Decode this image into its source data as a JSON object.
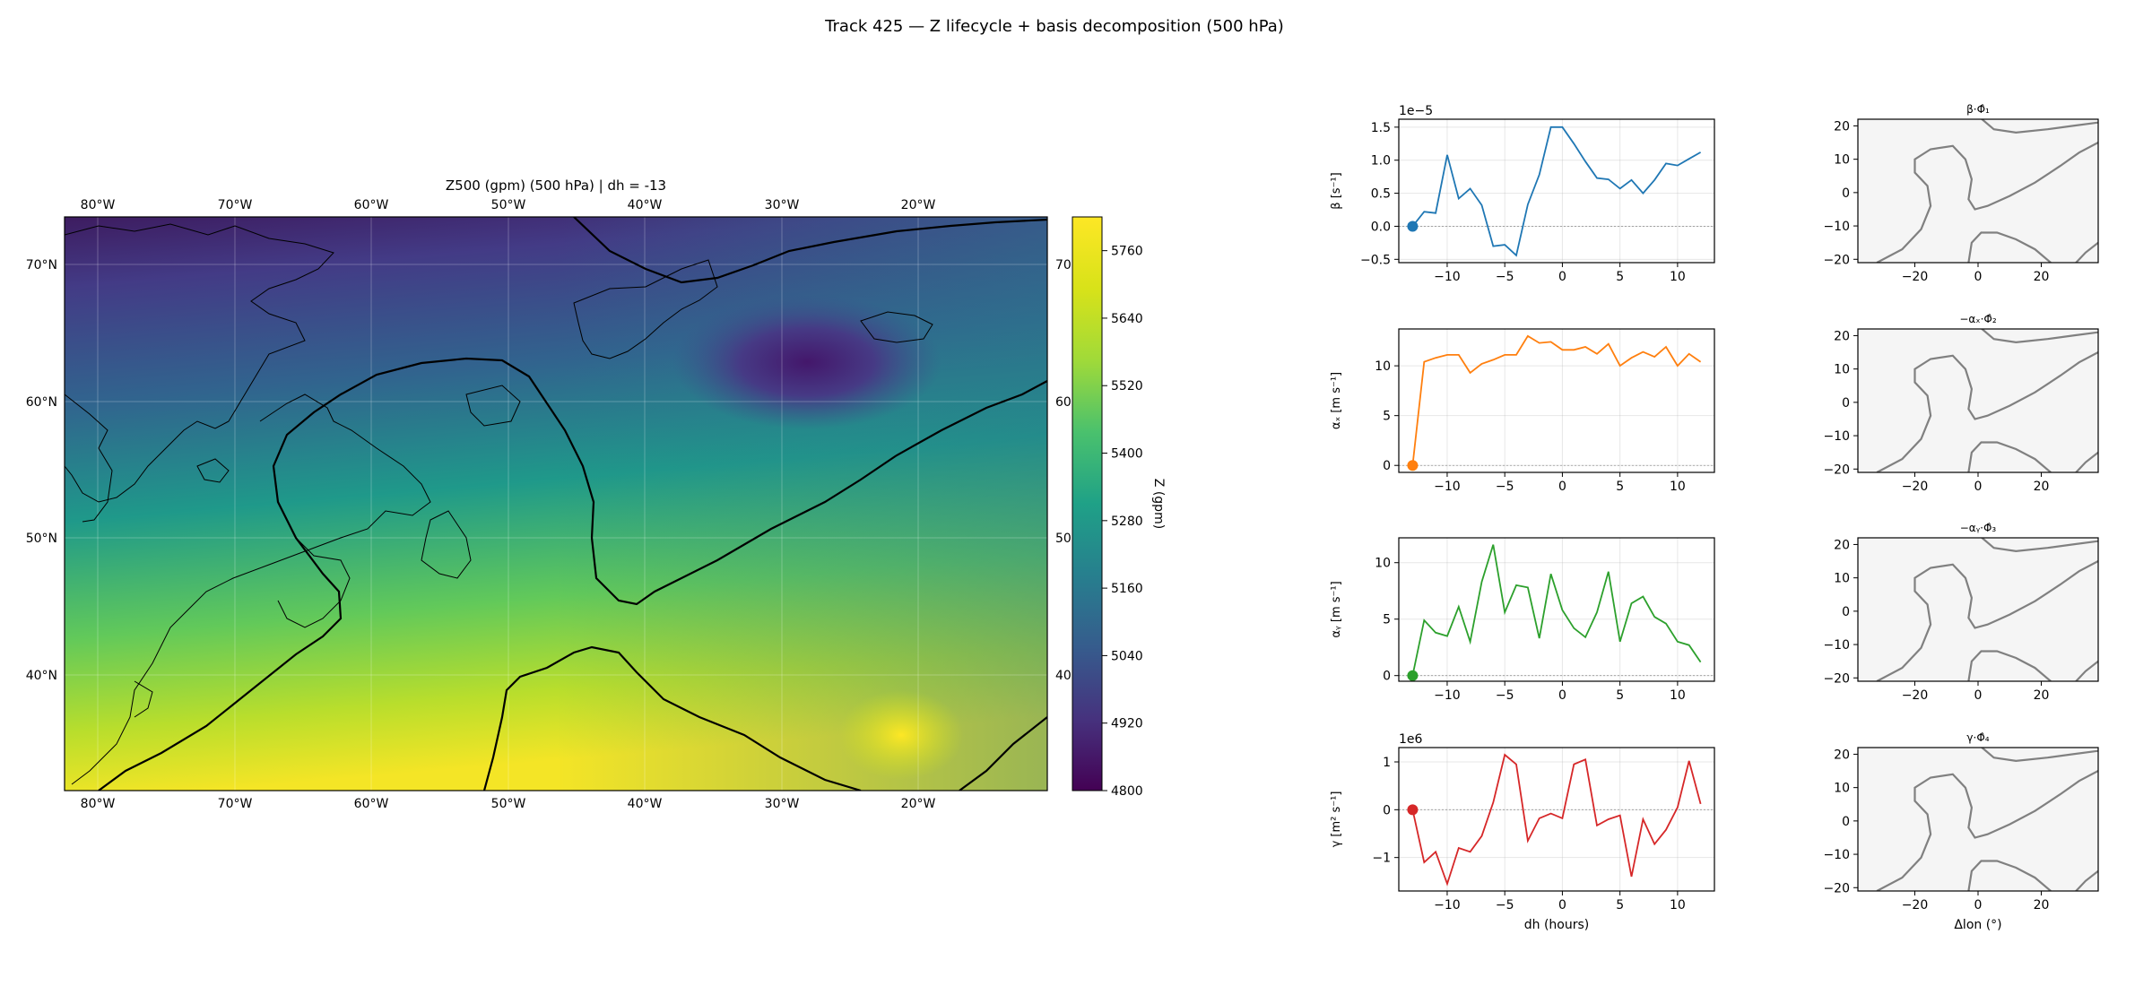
{
  "suptitle": "Track 425 — Z lifecycle + basis decomposition (500 hPa)",
  "map": {
    "title": "Z500 (gpm) (500 hPa)  |  dh = -13",
    "lon_labels": [
      "80°W",
      "70°W",
      "60°W",
      "50°W",
      "40°W",
      "30°W",
      "20°W"
    ],
    "lat_labels": [
      "70°N",
      "60°N",
      "50°N",
      "40°N"
    ],
    "lat_labels_right_clipped": [
      "70",
      "60",
      "50",
      "40"
    ],
    "colorbar": {
      "label": "Z (gpm)",
      "ticks": [
        "5760",
        "5640",
        "5520",
        "5400",
        "5280",
        "5160",
        "5040",
        "4920",
        "4800"
      ],
      "range": [
        4800,
        5820
      ],
      "colormap": "viridis"
    }
  },
  "chart_data": [
    {
      "type": "line",
      "panel": "beta",
      "ylabel_tex": "β [s⁻¹]",
      "offset_label": "1e−5",
      "xlim": [
        -14.2,
        13.2
      ],
      "ylim": [
        -0.55,
        1.62
      ],
      "xticks": [
        "−10",
        "−5",
        "0",
        "5",
        "10"
      ],
      "yticks": [
        "1.5",
        "1.0",
        "0.5",
        "0.0",
        "−0.5"
      ],
      "color": "#1f77b4",
      "x": [
        -13,
        -12,
        -11,
        -10,
        -9,
        -8,
        -7,
        -6,
        -5,
        -4,
        -3,
        -2,
        -1,
        0,
        1,
        2,
        3,
        4,
        5,
        6,
        7,
        8,
        9,
        10,
        11,
        12
      ],
      "values": [
        0.0,
        0.22,
        0.2,
        1.08,
        0.42,
        0.57,
        0.32,
        -0.3,
        -0.28,
        -0.44,
        0.33,
        0.78,
        1.5,
        1.5,
        1.25,
        0.98,
        0.73,
        0.71,
        0.57,
        0.7,
        0.5,
        0.7,
        0.95,
        0.92,
        1.02,
        1.12
      ],
      "marker": {
        "x": -13,
        "y": 0.0
      }
    },
    {
      "type": "line",
      "panel": "alpha_x",
      "ylabel_tex": "αₓ [m s⁻¹]",
      "xlim": [
        -14.2,
        13.2
      ],
      "ylim": [
        -0.7,
        13.7
      ],
      "xticks": [
        "−10",
        "−5",
        "0",
        "5",
        "10"
      ],
      "yticks": [
        "10",
        "5",
        "0"
      ],
      "color": "#ff7f0e",
      "x": [
        -13,
        -12,
        -11,
        -10,
        -9,
        -8,
        -7,
        -6,
        -5,
        -4,
        -3,
        -2,
        -1,
        0,
        1,
        2,
        3,
        4,
        5,
        6,
        7,
        8,
        9,
        10,
        11,
        12
      ],
      "values": [
        0.0,
        10.4,
        10.8,
        11.1,
        11.1,
        9.3,
        10.2,
        10.6,
        11.1,
        11.1,
        13.0,
        12.3,
        12.4,
        11.6,
        11.6,
        11.9,
        11.2,
        12.2,
        10.0,
        10.8,
        11.4,
        10.9,
        11.9,
        10.0,
        11.2,
        10.4
      ],
      "marker": {
        "x": -13,
        "y": 0.0
      }
    },
    {
      "type": "line",
      "panel": "alpha_y",
      "ylabel_tex": "αᵧ [m s⁻¹]",
      "xlim": [
        -14.2,
        13.2
      ],
      "ylim": [
        -0.5,
        12.2
      ],
      "xticks": [
        "−10",
        "−5",
        "0",
        "5",
        "10"
      ],
      "yticks": [
        "10",
        "5",
        "0"
      ],
      "color": "#2ca02c",
      "x": [
        -13,
        -12,
        -11,
        -10,
        -9,
        -8,
        -7,
        -6,
        -5,
        -4,
        -3,
        -2,
        -1,
        0,
        1,
        2,
        3,
        4,
        5,
        6,
        7,
        8,
        9,
        10,
        11,
        12
      ],
      "values": [
        0.0,
        4.9,
        3.8,
        3.5,
        6.1,
        3.0,
        8.3,
        11.6,
        5.6,
        8.0,
        7.8,
        3.3,
        9.0,
        5.8,
        4.2,
        3.4,
        5.6,
        9.2,
        3.0,
        6.4,
        7.0,
        5.2,
        4.6,
        3.0,
        2.7,
        1.2
      ],
      "marker": {
        "x": -13,
        "y": 0.0
      }
    },
    {
      "type": "line",
      "panel": "gamma",
      "ylabel_tex": "γ [m² s⁻¹]",
      "offset_label": "1e6",
      "xlabel": "dh (hours)",
      "xlim": [
        -14.2,
        13.2
      ],
      "ylim": [
        -1.7,
        1.3
      ],
      "xticks": [
        "−10",
        "−5",
        "0",
        "5",
        "10"
      ],
      "yticks": [
        "1",
        "0",
        "−1"
      ],
      "color": "#d62728",
      "x": [
        -13,
        -12,
        -11,
        -10,
        -9,
        -8,
        -7,
        -6,
        -5,
        -4,
        -3,
        -2,
        -1,
        0,
        1,
        2,
        3,
        4,
        5,
        6,
        7,
        8,
        9,
        10,
        11,
        12
      ],
      "values": [
        0.0,
        -1.1,
        -0.88,
        -1.55,
        -0.8,
        -0.88,
        -0.55,
        0.15,
        1.15,
        0.95,
        -0.65,
        -0.18,
        -0.08,
        -0.18,
        0.95,
        1.05,
        -0.33,
        -0.2,
        -0.12,
        -1.4,
        -0.2,
        -0.72,
        -0.42,
        0.05,
        1.02,
        0.12
      ],
      "marker": {
        "x": -13,
        "y": 0.0
      }
    }
  ],
  "basis_panels": [
    {
      "title": "β·Φ̂₁",
      "xticks": [
        "−20",
        "0",
        "20"
      ],
      "yticks": [
        "20",
        "10",
        "0",
        "−10",
        "−20"
      ]
    },
    {
      "title": "−αₓ·Φ̂₂",
      "xticks": [
        "−20",
        "0",
        "20"
      ],
      "yticks": [
        "20",
        "10",
        "0",
        "−10",
        "−20"
      ]
    },
    {
      "title": "−αᵧ·Φ̂₃",
      "xticks": [
        "−20",
        "0",
        "20"
      ],
      "yticks": [
        "20",
        "10",
        "0",
        "−10",
        "−20"
      ]
    },
    {
      "title": "γ·Φ̂₄",
      "xticks": [
        "−20",
        "0",
        "20"
      ],
      "yticks": [
        "20",
        "10",
        "0",
        "−10",
        "−20"
      ],
      "xlabel": "Δlon (°)"
    }
  ]
}
